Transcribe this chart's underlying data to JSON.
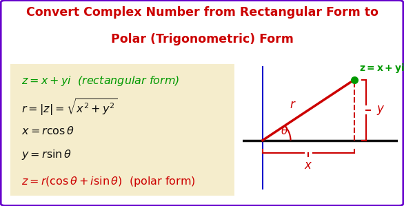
{
  "title_line1": "Convert Complex Number from Rectangular Form to",
  "title_line2": "Polar (Trigonometric) Form",
  "title_color": "#cc0000",
  "title_fontsize": 12.5,
  "bg_color": "#ffffff",
  "border_color": "#6600cc",
  "box_bg_color": "#f5edcc",
  "green_color": "#009900",
  "red_color": "#cc0000",
  "black_color": "#111111",
  "blue_color": "#0000cc",
  "formula_fontsize": 11.5
}
